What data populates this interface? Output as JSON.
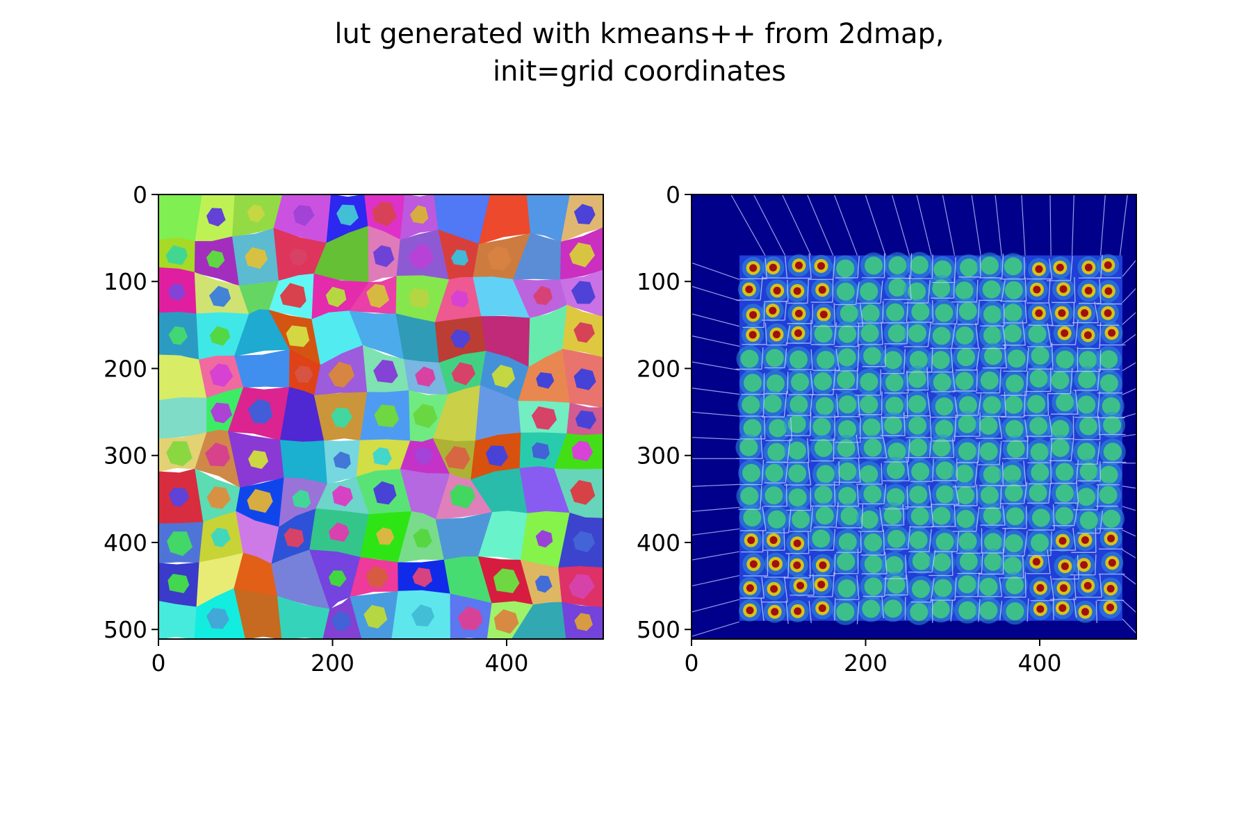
{
  "figure": {
    "title_line1": "lut generated with kmeans++ from 2dmap,",
    "title_line2": "init=grid coordinates"
  },
  "chart_data": [
    {
      "type": "heatmap",
      "name": "lut-label-map",
      "title": "",
      "xlabel": "",
      "ylabel": "",
      "xlim": [
        0,
        511
      ],
      "ylim": [
        511,
        0
      ],
      "xticks": [
        0,
        200,
        400
      ],
      "yticks": [
        0,
        100,
        200,
        300,
        400,
        500
      ],
      "grid": false,
      "cells_grid": [
        11,
        11
      ],
      "cell_colormap": "random-hue"
    },
    {
      "type": "heatmap",
      "name": "2dmap-density-with-voronoi-overlay",
      "title": "",
      "xlabel": "",
      "ylabel": "",
      "xlim": [
        0,
        511
      ],
      "ylim": [
        511,
        0
      ],
      "xticks": [
        0,
        200,
        400
      ],
      "yticks": [
        0,
        100,
        200,
        300,
        400,
        500
      ],
      "grid": false,
      "colormap": "jet",
      "background_color": "#00008b",
      "density_extent": {
        "x": [
          55,
          495
        ],
        "y": [
          70,
          490
        ]
      },
      "dot_grid": [
        16,
        16
      ],
      "voronoi_line_color": "#b8c8ff"
    }
  ]
}
